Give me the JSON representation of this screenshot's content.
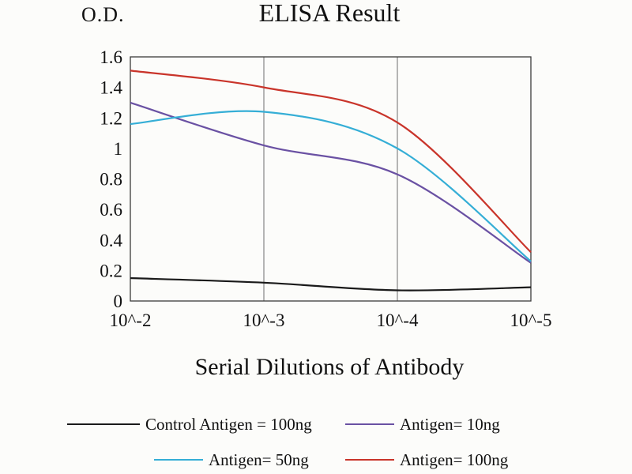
{
  "chart_data": {
    "type": "line",
    "title": "ELISA Result",
    "ylabel": "O.D.",
    "xlabel": "Serial Dilutions of Antibody",
    "categories": [
      "10^-2",
      "10^-3",
      "10^-4",
      "10^-5"
    ],
    "ylim": [
      0,
      1.6
    ],
    "yticks": [
      0,
      0.2,
      0.4,
      0.6,
      0.8,
      1,
      1.2,
      1.4,
      1.6
    ],
    "ytick_labels": [
      "0",
      "0.2",
      "0.4",
      "0.6",
      "0.8",
      "1",
      "1.2",
      "1.4",
      "1.6"
    ],
    "grid": "vertical-only",
    "line_style": "smooth",
    "legend_position": "bottom-two-rows",
    "colors": {
      "axis_border": "#3a3a3a",
      "gridline": "#6e6e6e",
      "text": "#111111"
    },
    "series": [
      {
        "name": "Control Antigen = 100ng",
        "color": "#1a1a1a",
        "values": [
          0.15,
          0.12,
          0.07,
          0.09
        ]
      },
      {
        "name": "Antigen= 10ng",
        "color": "#6a51a3",
        "values": [
          1.3,
          1.02,
          0.83,
          0.25
        ]
      },
      {
        "name": "Antigen= 50ng",
        "color": "#35aed6",
        "values": [
          1.16,
          1.24,
          1.0,
          0.26
        ]
      },
      {
        "name": "Antigen= 100ng",
        "color": "#c9342a",
        "values": [
          1.51,
          1.4,
          1.17,
          0.32
        ]
      }
    ],
    "legend_rows": [
      [
        "Control Antigen = 100ng",
        "Antigen= 10ng"
      ],
      [
        "Antigen= 50ng",
        "Antigen= 100ng"
      ]
    ]
  }
}
